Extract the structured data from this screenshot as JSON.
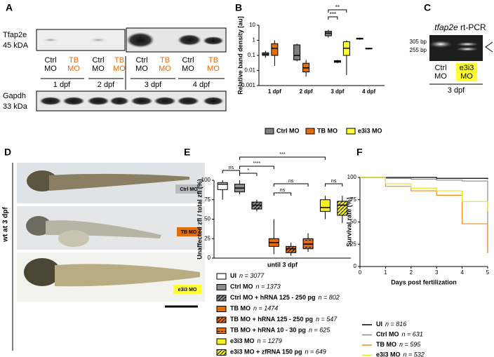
{
  "panel_letters": [
    "A",
    "B",
    "C",
    "D",
    "E",
    "F"
  ],
  "blot": {
    "top_label": "Tfap2e",
    "top_size": "45 kDA",
    "bottom_label": "Gapdh",
    "bottom_size": "33 kDa",
    "lanes": [
      "Ctrl MO",
      "TB MO",
      "Ctrl MO",
      "TB MO",
      "Ctrl MO",
      "TB MO",
      "Ctrl MO",
      "TB MO"
    ],
    "ages": [
      "1 dpf",
      "2 dpf",
      "3 dpf",
      "4 dpf"
    ]
  },
  "gel": {
    "gene": "tfap2e",
    "method": "rt-PCR",
    "markers": [
      "305 bp",
      "255 bp"
    ],
    "lanes": [
      "Ctrl MO",
      "e3i3 MO"
    ],
    "age": "3 dpf"
  },
  "fish": {
    "side_label": "wt at 3 dpf",
    "tags": [
      "Ctrl MO",
      "TB MO",
      "e3i3 MO"
    ]
  },
  "chart_data": [
    {
      "type": "box",
      "ylabel": "Relative band density [au]",
      "log_y": true,
      "categories": [
        "1 dpf",
        "2 dpf",
        "3 dpf",
        "4 dpf"
      ],
      "ylim": [
        0.001,
        10
      ],
      "yticks": [
        0.001,
        0.01,
        0.1,
        1,
        10
      ],
      "series": [
        {
          "name": "Ctrl MO",
          "color": "#7f7f7f",
          "values": [
            [
              0.07,
              0.1,
              0.12,
              0.15,
              0.2
            ],
            [
              0.04,
              0.05,
              0.1,
              0.5,
              0.6
            ],
            [
              1.5,
              2,
              3,
              4,
              5
            ],
            [
              1.1,
              1.2,
              1.3,
              1.4,
              1.5
            ]
          ]
        },
        {
          "name": "TB MO",
          "color": "#e46c0a",
          "values": [
            [
              0.02,
              0.1,
              0.3,
              0.6,
              1
            ],
            [
              0.004,
              0.008,
              0.015,
              0.03,
              0.05
            ],
            [
              0.03,
              0.035,
              0.04,
              0.045,
              0.05
            ],
            [
              0.25,
              0.27,
              0.28,
              0.3,
              0.32
            ]
          ]
        },
        {
          "name": "e3i3 MO",
          "color": "#ffff33",
          "values": [
            null,
            null,
            [
              0.005,
              0.1,
              0.3,
              0.8,
              1
            ],
            null
          ]
        }
      ],
      "annotations": [
        "***",
        "**"
      ]
    },
    {
      "type": "box",
      "ylabel": "Unaffected zfl / total zfl (%)",
      "xlabel": "until 3 dpf",
      "ylim": [
        0,
        100
      ],
      "yticks": [
        0,
        25,
        50,
        75,
        100
      ],
      "series": [
        {
          "name": "UI",
          "n": "n = 3077",
          "color": "#ffffff",
          "hatch": null,
          "values": [
            75,
            88,
            95,
            97,
            100
          ]
        },
        {
          "name": "Ctrl MO",
          "n": "n = 1373",
          "color": "#8c8c8c",
          "hatch": null,
          "values": [
            82,
            85,
            90,
            95,
            100
          ]
        },
        {
          "name": "Ctrl MO + hRNA 125 - 250 pg",
          "n": "n = 802",
          "color": "#8c8c8c",
          "hatch": "diagonal",
          "values": [
            60,
            63,
            68,
            72,
            75
          ]
        },
        {
          "name": "TB MO",
          "n": "n = 1474",
          "color": "#e46c0a",
          "hatch": null,
          "values": [
            5,
            15,
            20,
            25,
            50
          ]
        },
        {
          "name": "TB MO + hRNA 125 - 250 pg",
          "n": "n = 547",
          "color": "#e46c0a",
          "hatch": "diagonal",
          "values": [
            3,
            7,
            12,
            15,
            20
          ]
        },
        {
          "name": "TB MO + hRNA 10 - 30 pg",
          "n": "n = 625",
          "color": "#e46c0a",
          "hatch": "horizontal",
          "values": [
            8,
            12,
            18,
            25,
            32
          ]
        },
        {
          "name": "e3i3 MO",
          "n": "n = 1279",
          "color": "#f5f020",
          "hatch": null,
          "values": [
            50,
            60,
            65,
            75,
            80
          ]
        },
        {
          "name": "e3i3 MO + zfRNA 150 pg",
          "n": "n = 649",
          "color": "#f5f020",
          "hatch": "diagonal",
          "values": [
            45,
            55,
            68,
            73,
            80
          ]
        }
      ],
      "annotations": [
        "ns",
        "*",
        "****",
        "***",
        "ns",
        "ns",
        "ns"
      ]
    },
    {
      "type": "line",
      "step": true,
      "ylabel": "Survival  rate (%)",
      "xlabel": "Days post fertilization",
      "x": [
        0,
        1,
        2,
        3,
        4,
        5
      ],
      "xlim": [
        0,
        5
      ],
      "ylim": [
        0,
        100
      ],
      "xticks": [
        0,
        1,
        2,
        3,
        4,
        5
      ],
      "yticks": [
        0,
        25,
        50,
        75,
        100
      ],
      "series": [
        {
          "name": "UI",
          "n": "n = 816",
          "color": "#000000",
          "values": [
            100,
            100,
            100,
            99,
            99,
            98
          ]
        },
        {
          "name": "Ctrl MO",
          "n": "n = 631",
          "color": "#8c8c8c",
          "values": [
            100,
            99,
            98,
            97,
            96,
            16
          ]
        },
        {
          "name": "TB MO",
          "n": "n = 595",
          "color": "#f08c1a",
          "values": [
            100,
            90,
            85,
            80,
            48,
            15
          ]
        },
        {
          "name": "e3i3 MO",
          "n": "n = 532",
          "color": "#e6e620",
          "values": [
            100,
            93,
            88,
            85,
            73,
            62
          ]
        }
      ]
    }
  ]
}
